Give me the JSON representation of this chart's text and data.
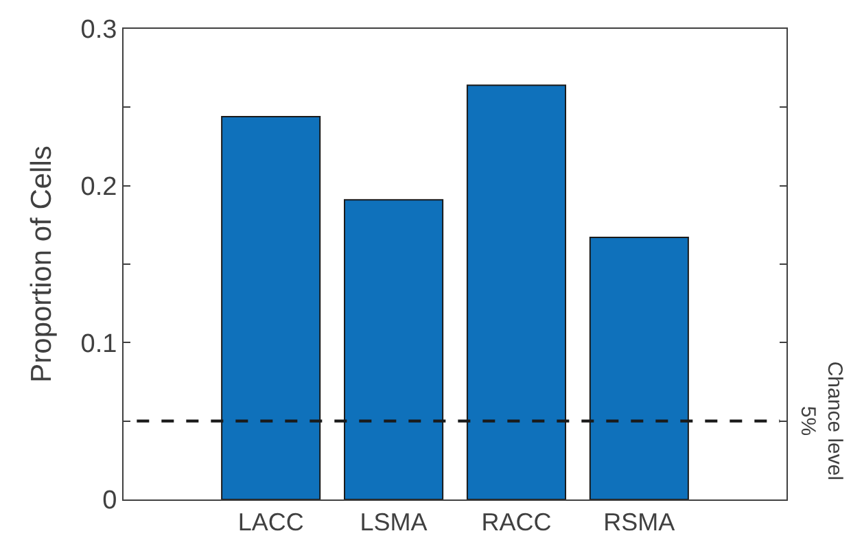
{
  "chart_data": {
    "type": "bar",
    "ylabel": "Proportion of Cells",
    "categories": [
      "LACC",
      "LSMA",
      "RACC",
      "RSMA"
    ],
    "values": [
      0.244,
      0.191,
      0.264,
      0.167
    ],
    "color": "#0f71bb",
    "ylim": [
      0,
      0.3
    ],
    "yticks": [
      0,
      {
        "value": 0.05,
        "label": null
      },
      0.1,
      {
        "value": 0.15,
        "label": null
      },
      0.2,
      {
        "value": 0.25,
        "label": null
      },
      0.3
    ],
    "ref_lines": [
      {
        "axis": "y",
        "value": 0.05,
        "label": "Chance level\n5%",
        "color": "#1a1a1a",
        "line_style": "dashed"
      }
    ]
  }
}
